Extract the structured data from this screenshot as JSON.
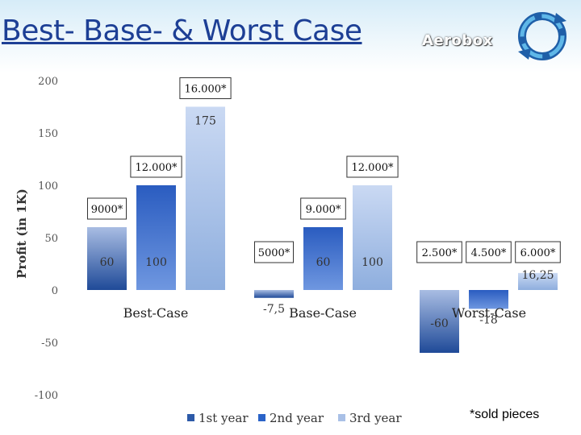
{
  "slide": {
    "title": "Best- Base- & Worst Case",
    "brand": "Aerobox",
    "note": "*sold pieces"
  },
  "colors": {
    "title": "#1d3f95",
    "year1": "#2d5aa8",
    "year2": "#2a63c8",
    "year3": "#a9c0e6",
    "axis_text": "#555555"
  },
  "icons": [
    "cycle-arrows-icon"
  ],
  "chart_data": {
    "type": "bar",
    "ylabel": "Profit (in 1K)",
    "xlabel": "",
    "ylim": [
      -100,
      200
    ],
    "yticks": [
      200,
      150,
      100,
      50,
      0,
      -50,
      -100
    ],
    "grid": false,
    "legend_position": "bottom",
    "categories": [
      "Best-Case",
      "Base-Case",
      "Worst-Case"
    ],
    "series": [
      {
        "name": "1st year",
        "values": [
          60,
          -7.5,
          -60
        ],
        "value_labels": [
          "60",
          "-7,5",
          "-60"
        ],
        "pieces": [
          "9000*",
          "5000*",
          "2.500*"
        ]
      },
      {
        "name": "2nd year",
        "values": [
          100,
          60,
          -18
        ],
        "value_labels": [
          "100",
          "60",
          "-18"
        ],
        "pieces": [
          "12.000*",
          "9.000*",
          "4.500*"
        ]
      },
      {
        "name": "3rd year",
        "values": [
          175,
          100,
          16.25
        ],
        "value_labels": [
          "175",
          "100",
          "16,25"
        ],
        "pieces": [
          "16.000*",
          "12.000*",
          "6.000*"
        ]
      }
    ]
  }
}
